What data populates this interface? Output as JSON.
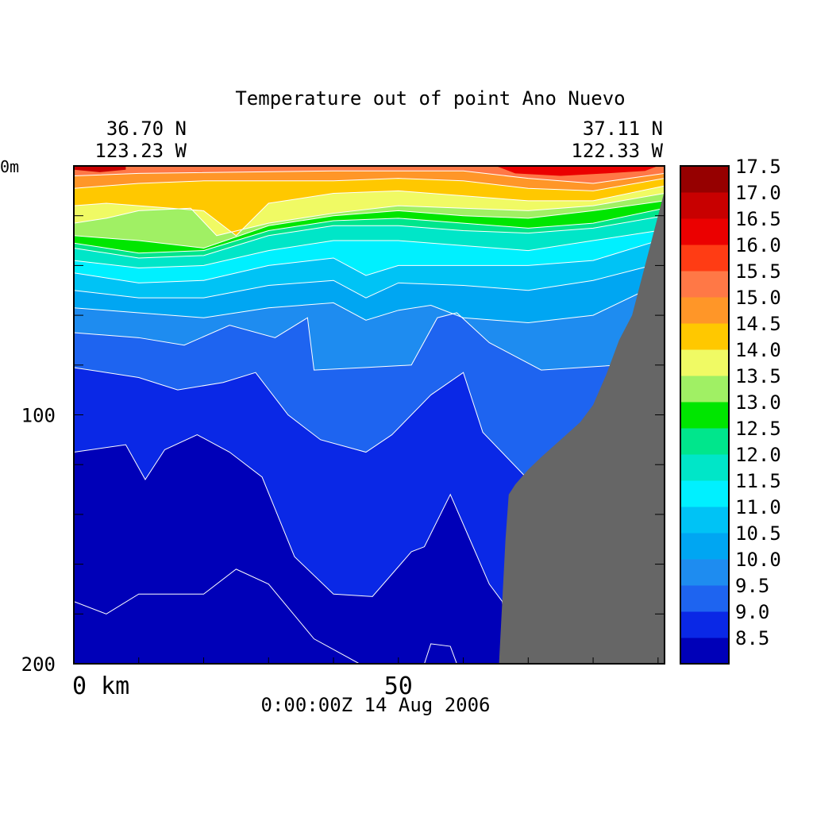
{
  "chart_data": {
    "type": "heatmap",
    "title": "Temperature out of point Ano Nuevo",
    "start_lat": "36.70 N",
    "start_lon": "123.23 W",
    "end_lat": "37.11 N",
    "end_lon": "122.33 W",
    "timestamp": "0:00:00Z  14 Aug 2006",
    "xlabel": "km",
    "xlim": [
      0,
      91
    ],
    "ylim": [
      0,
      200
    ],
    "x_ticks": [
      {
        "value": 0,
        "label": "0 km"
      },
      {
        "value": 50,
        "label": "50"
      }
    ],
    "y_ticks": [
      {
        "value": 0,
        "label": "0m"
      },
      {
        "value": 100,
        "label": "100"
      },
      {
        "value": 200,
        "label": "200"
      }
    ],
    "colorbar": [
      {
        "value": 8.5,
        "label": "8.5",
        "color": "#0000b8"
      },
      {
        "value": 9.0,
        "label": "9.0",
        "color": "#0a28e6"
      },
      {
        "value": 9.5,
        "label": "9.5",
        "color": "#1e64f0"
      },
      {
        "value": 10.0,
        "label": "10.0",
        "color": "#1e8cf0"
      },
      {
        "value": 10.5,
        "label": "10.5",
        "color": "#00a6f2"
      },
      {
        "value": 11.0,
        "label": "11.0",
        "color": "#00c3f5"
      },
      {
        "value": 11.5,
        "label": "11.5",
        "color": "#00f0ff"
      },
      {
        "value": 12.0,
        "label": "12.0",
        "color": "#00e6c8"
      },
      {
        "value": 12.5,
        "label": "12.5",
        "color": "#00e68c"
      },
      {
        "value": 13.0,
        "label": "13.0",
        "color": "#00e600"
      },
      {
        "value": 13.5,
        "label": "13.5",
        "color": "#a0f064"
      },
      {
        "value": 14.0,
        "label": "14.0",
        "color": "#f0fa64"
      },
      {
        "value": 14.5,
        "label": "14.5",
        "color": "#ffc800"
      },
      {
        "value": 15.0,
        "label": "15.0",
        "color": "#ff9628"
      },
      {
        "value": 15.5,
        "label": "15.5",
        "color": "#ff7846"
      },
      {
        "value": 16.0,
        "label": "16.0",
        "color": "#ff3c14"
      },
      {
        "value": 16.5,
        "label": "16.5",
        "color": "#eb0000"
      },
      {
        "value": 17.0,
        "label": "17.0",
        "color": "#c80000"
      },
      {
        "value": 17.5,
        "label": "17.5",
        "color": "#960000"
      }
    ],
    "isotherms": [
      {
        "t": 8.5,
        "pts": [
          [
            0,
            175
          ],
          [
            5,
            180
          ],
          [
            10,
            172
          ],
          [
            20,
            172
          ],
          [
            25,
            162
          ],
          [
            30,
            168
          ],
          [
            37,
            190
          ],
          [
            44,
            200
          ]
        ]
      },
      {
        "t": 8.5,
        "pts": [
          [
            54,
            200
          ],
          [
            55,
            192
          ],
          [
            58,
            193
          ],
          [
            59,
            200
          ]
        ]
      },
      {
        "t": 9.0,
        "pts": [
          [
            0,
            115
          ],
          [
            8,
            112
          ],
          [
            11,
            126
          ],
          [
            14,
            114
          ],
          [
            19,
            108
          ],
          [
            24,
            115
          ],
          [
            29,
            125
          ],
          [
            34,
            157
          ],
          [
            40,
            172
          ],
          [
            46,
            173
          ],
          [
            52,
            155
          ],
          [
            54,
            153
          ],
          [
            58,
            132
          ],
          [
            61,
            150
          ],
          [
            64,
            168
          ],
          [
            66,
            175
          ],
          [
            67,
            200
          ]
        ]
      },
      {
        "t": 9.5,
        "pts": [
          [
            0,
            81
          ],
          [
            10,
            85
          ],
          [
            16,
            90
          ],
          [
            23,
            87
          ],
          [
            28,
            83
          ],
          [
            33,
            100
          ],
          [
            38,
            110
          ],
          [
            45,
            115
          ],
          [
            49,
            108
          ],
          [
            55,
            92
          ],
          [
            60,
            83
          ],
          [
            63,
            107
          ],
          [
            70,
            126
          ]
        ]
      },
      {
        "t": 10.0,
        "pts": [
          [
            0,
            67
          ],
          [
            10,
            69
          ],
          [
            17,
            72
          ],
          [
            24,
            64
          ],
          [
            31,
            69
          ],
          [
            36,
            61
          ],
          [
            37,
            82
          ],
          [
            45,
            81
          ],
          [
            52,
            80
          ],
          [
            56,
            61
          ],
          [
            59,
            59
          ],
          [
            64,
            71
          ],
          [
            72,
            82
          ],
          [
            84,
            80
          ]
        ]
      },
      {
        "t": 10.5,
        "pts": [
          [
            0,
            57
          ],
          [
            10,
            59
          ],
          [
            20,
            61
          ],
          [
            30,
            57
          ],
          [
            40,
            55
          ],
          [
            45,
            62
          ],
          [
            50,
            58
          ],
          [
            55,
            56
          ],
          [
            60,
            61
          ],
          [
            70,
            63
          ],
          [
            80,
            60
          ],
          [
            88,
            50
          ]
        ]
      },
      {
        "t": 11.0,
        "pts": [
          [
            0,
            50
          ],
          [
            10,
            53
          ],
          [
            20,
            53
          ],
          [
            30,
            48
          ],
          [
            40,
            46
          ],
          [
            45,
            53
          ],
          [
            50,
            47
          ],
          [
            60,
            48
          ],
          [
            70,
            50
          ],
          [
            80,
            46
          ],
          [
            89,
            40
          ]
        ]
      },
      {
        "t": 11.5,
        "pts": [
          [
            0,
            43
          ],
          [
            10,
            47
          ],
          [
            20,
            46
          ],
          [
            30,
            40
          ],
          [
            40,
            37
          ],
          [
            45,
            44
          ],
          [
            50,
            40
          ],
          [
            60,
            40
          ],
          [
            70,
            40
          ],
          [
            80,
            38
          ],
          [
            90,
            30
          ]
        ]
      },
      {
        "t": 12.0,
        "pts": [
          [
            0,
            38
          ],
          [
            10,
            41
          ],
          [
            20,
            40
          ],
          [
            30,
            34
          ],
          [
            40,
            30
          ],
          [
            50,
            30
          ],
          [
            60,
            32
          ],
          [
            70,
            34
          ],
          [
            80,
            30
          ],
          [
            90,
            26
          ]
        ]
      },
      {
        "t": 12.5,
        "pts": [
          [
            0,
            33
          ],
          [
            10,
            37
          ],
          [
            20,
            36
          ],
          [
            30,
            28
          ],
          [
            40,
            24
          ],
          [
            50,
            24
          ],
          [
            60,
            26
          ],
          [
            70,
            27
          ],
          [
            80,
            25
          ],
          [
            91,
            20
          ]
        ]
      },
      {
        "t": 13.0,
        "pts": [
          [
            0,
            31
          ],
          [
            10,
            35
          ],
          [
            20,
            34
          ],
          [
            30,
            26
          ],
          [
            40,
            22
          ],
          [
            50,
            21
          ],
          [
            60,
            23
          ],
          [
            70,
            25
          ],
          [
            80,
            23
          ],
          [
            91,
            17
          ]
        ]
      },
      {
        "t": 13.5,
        "pts": [
          [
            0,
            28
          ],
          [
            10,
            30
          ],
          [
            20,
            33
          ],
          [
            30,
            24
          ],
          [
            40,
            20
          ],
          [
            50,
            18
          ],
          [
            60,
            20
          ],
          [
            70,
            21
          ],
          [
            80,
            18
          ],
          [
            91,
            14
          ]
        ]
      },
      {
        "t": 14.0,
        "pts": [
          [
            0,
            23
          ],
          [
            5,
            21
          ],
          [
            10,
            18
          ],
          [
            18,
            17
          ],
          [
            22,
            28
          ],
          [
            30,
            23
          ],
          [
            40,
            19
          ],
          [
            50,
            16
          ],
          [
            60,
            17
          ],
          [
            70,
            18
          ],
          [
            80,
            16
          ],
          [
            91,
            11
          ]
        ]
      },
      {
        "t": 14.5,
        "pts": [
          [
            0,
            16
          ],
          [
            5,
            15
          ],
          [
            10,
            16
          ],
          [
            20,
            18
          ],
          [
            25,
            28
          ],
          [
            30,
            15
          ],
          [
            40,
            11
          ],
          [
            50,
            10
          ],
          [
            60,
            12
          ],
          [
            70,
            14
          ],
          [
            80,
            14
          ],
          [
            91,
            8
          ]
        ]
      },
      {
        "t": 15.0,
        "pts": [
          [
            0,
            9
          ],
          [
            10,
            7
          ],
          [
            20,
            6
          ],
          [
            30,
            6
          ],
          [
            40,
            6
          ],
          [
            50,
            5
          ],
          [
            60,
            6
          ],
          [
            70,
            9
          ],
          [
            80,
            10
          ],
          [
            91,
            5
          ]
        ]
      },
      {
        "t": 15.5,
        "pts": [
          [
            0,
            4
          ],
          [
            10,
            3
          ],
          [
            40,
            2
          ],
          [
            60,
            2
          ],
          [
            70,
            5
          ],
          [
            80,
            7
          ],
          [
            91,
            3
          ]
        ]
      }
    ],
    "seafloor": [
      [
        91,
        10
      ],
      [
        90,
        20
      ],
      [
        88,
        40
      ],
      [
        86,
        60
      ],
      [
        84,
        70
      ],
      [
        82,
        84
      ],
      [
        80,
        96
      ],
      [
        78,
        103
      ],
      [
        75,
        110
      ],
      [
        72,
        117
      ],
      [
        70,
        122
      ],
      [
        69,
        125
      ],
      [
        68,
        128
      ],
      [
        67,
        132
      ],
      [
        66.5,
        150
      ],
      [
        66,
        175
      ],
      [
        65.5,
        200
      ]
    ]
  }
}
